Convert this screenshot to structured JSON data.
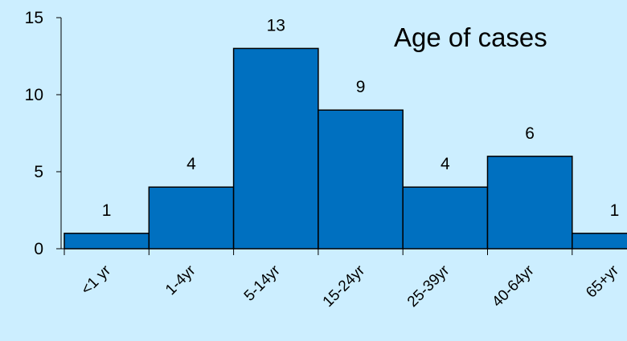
{
  "chart_data": {
    "type": "bar",
    "title": "Age of cases",
    "xlabel": "",
    "ylabel": "",
    "categories": [
      "<1 yr",
      "1-4yr",
      "5-14yr",
      "15-24yr",
      "25-39yr",
      "40-64yr",
      "65+yr"
    ],
    "values": [
      1,
      4,
      13,
      9,
      4,
      6,
      1
    ],
    "ylim": [
      0,
      15
    ],
    "yticks": [
      0,
      5,
      10,
      15
    ],
    "grid": false,
    "legend": "none",
    "bar_color": "#0070c0",
    "bar_edge_color": "#000000",
    "background_color": "#cceeff"
  }
}
